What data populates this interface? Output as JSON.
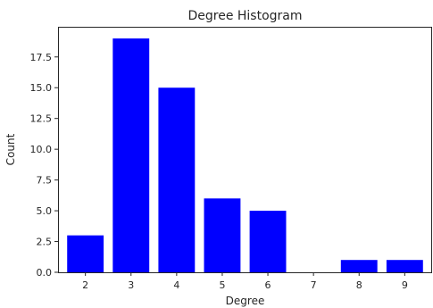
{
  "chart_data": {
    "type": "bar",
    "title": "Degree Histogram",
    "xlabel": "Degree",
    "ylabel": "Count",
    "categories": [
      "2",
      "3",
      "4",
      "5",
      "6",
      "7",
      "8",
      "9"
    ],
    "x": [
      2,
      3,
      4,
      5,
      6,
      7,
      8,
      9
    ],
    "values": [
      3,
      19,
      15,
      6,
      5,
      0,
      1,
      1
    ],
    "xlim": [
      1.4,
      9.6
    ],
    "ylim": [
      0,
      19.95
    ],
    "yticks": [
      0.0,
      2.5,
      5.0,
      7.5,
      10.0,
      12.5,
      15.0,
      17.5
    ],
    "ytick_labels": [
      "0.0",
      "2.5",
      "5.0",
      "7.5",
      "10.0",
      "12.5",
      "15.0",
      "17.5"
    ],
    "bar_color": "#0000ff",
    "grid": false,
    "legend": "none"
  }
}
